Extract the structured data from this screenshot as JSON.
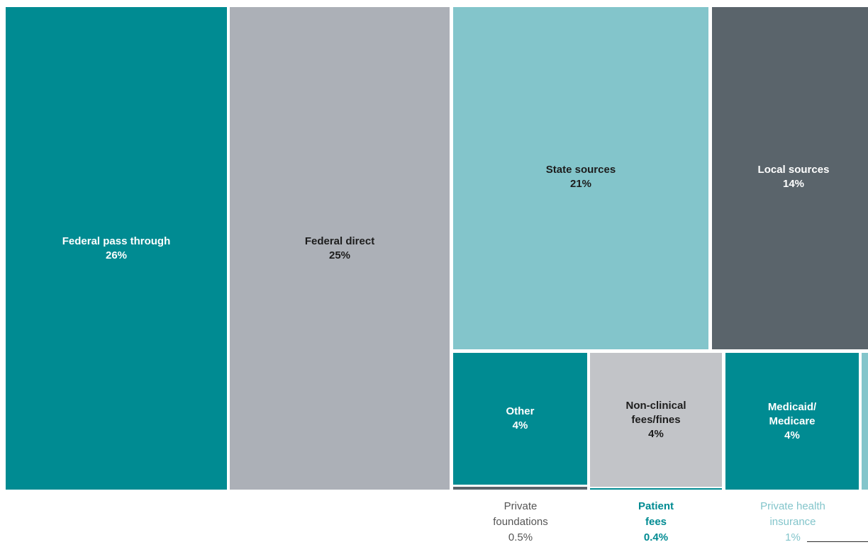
{
  "chart_data": {
    "type": "treemap",
    "unit": "%",
    "items": [
      {
        "label": "Federal pass through",
        "value": "26%",
        "color": "#008b92",
        "text_color": "#ffffff"
      },
      {
        "label": "Federal direct",
        "value": "25%",
        "color": "#acb0b7",
        "text_color": "#1d1d1d"
      },
      {
        "label": "State sources",
        "value": "21%",
        "color": "#83c5cb",
        "text_color": "#1d1d1d"
      },
      {
        "label": "Local sources",
        "value": "14%",
        "color": "#5a646b",
        "text_color": "#ffffff"
      },
      {
        "label": "Other",
        "value": "4%",
        "color": "#008b92",
        "text_color": "#ffffff"
      },
      {
        "label": "Non-clinical\nfees/fines",
        "value": "4%",
        "color": "#c2c4c8",
        "text_color": "#1d1d1d"
      },
      {
        "label": "Medicaid/\nMedicare",
        "value": "4%",
        "color": "#008b92",
        "text_color": "#ffffff"
      },
      {
        "label": "Private\nfoundations",
        "value": "0.5%",
        "color": "#5a646b",
        "text_color": "#555555"
      },
      {
        "label": "Patient\nfees",
        "value": "0.4%",
        "color": "#008b92",
        "text_color": "#008b92"
      },
      {
        "label": "Private health\ninsurance",
        "value": "1%",
        "color": "#83c5cb",
        "text_color": "#83c5cb"
      }
    ]
  }
}
